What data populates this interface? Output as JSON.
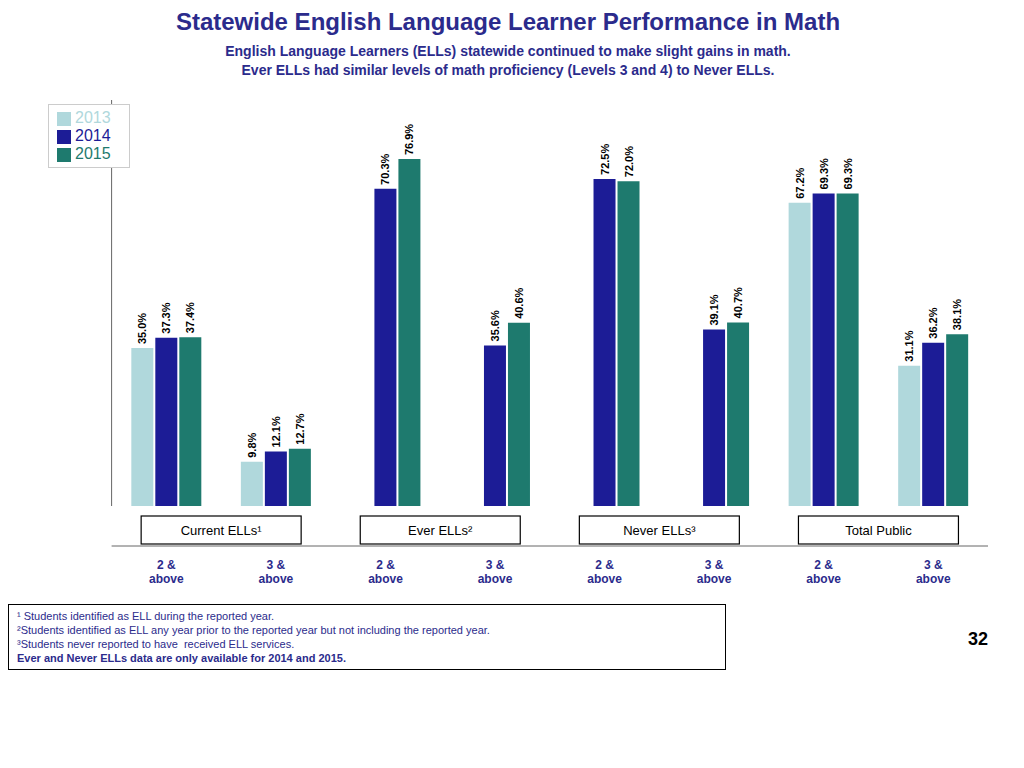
{
  "chart_data": {
    "type": "bar",
    "title": "Statewide English Language Learner Performance in Math",
    "subtitle": [
      "English Language Learners (ELLs) statewide continued to make slight gains in math.",
      "Ever ELLs had similar levels of math proficiency (Levels 3 and 4) to Never ELLs."
    ],
    "categories": [
      "2 &\nabove",
      "3 &\nabove",
      "2 &\nabove",
      "3 &\nabove",
      "2 &\nabove",
      "3 &\nabove",
      "2 &\nabove",
      "3 &\nabove"
    ],
    "groups": [
      "Current ELLs¹",
      "Ever ELLs²",
      "Never ELLs³",
      "Total Public"
    ],
    "series": [
      {
        "name": "2013",
        "color": "#B0D8DC",
        "values": [
          35.0,
          9.8,
          null,
          null,
          null,
          null,
          67.2,
          31.1
        ],
        "value_labels": [
          "35.0%",
          "9.8%",
          null,
          null,
          null,
          null,
          "67.2%",
          "31.1%"
        ]
      },
      {
        "name": "2014",
        "color": "#1C1C96",
        "values": [
          37.3,
          12.1,
          70.3,
          35.6,
          72.5,
          39.1,
          69.3,
          36.2
        ],
        "value_labels": [
          "37.3%",
          "12.1%",
          "70.3%",
          "35.6%",
          "72.5%",
          "39.1%",
          "69.3%",
          "36.2%"
        ]
      },
      {
        "name": "2015",
        "color": "#1E7A6E",
        "values": [
          37.4,
          12.7,
          76.9,
          40.6,
          72.0,
          40.7,
          69.3,
          38.1
        ],
        "value_labels": [
          "37.4%",
          "12.7%",
          "76.9%",
          "40.6%",
          "72.0%",
          "40.7%",
          "69.3%",
          "38.1%"
        ]
      }
    ],
    "ylim": [
      0,
      90
    ],
    "tick_labels": false,
    "legend": "upper left",
    "data_labels": true,
    "footnotes": [
      "¹ Students identified as ELL during the reported year.",
      "²Students identified as ELL any year prior to the reported year but not including the reported year.",
      "³Students never reported to have  received ELL services.",
      "Ever and Never ELLs data are only available for 2014 and 2015."
    ],
    "page_number": "32"
  }
}
